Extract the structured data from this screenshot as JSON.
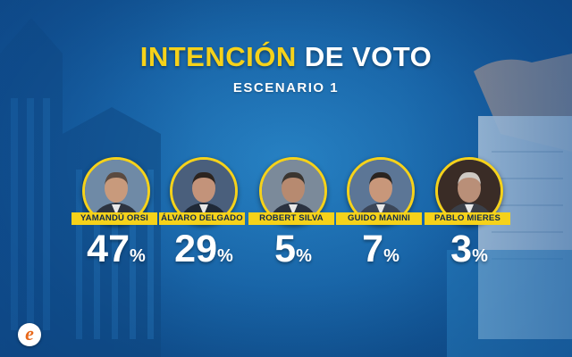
{
  "title": {
    "highlight": "INTENCIÓN",
    "rest": "DE VOTO"
  },
  "subtitle": "ESCENARIO 1",
  "colors": {
    "accent": "#f6d21a",
    "background": "#1a66a8",
    "text": "#ffffff"
  },
  "logo": {
    "letter": "e",
    "icon": "e-logo-icon"
  },
  "chart_data": {
    "type": "bar",
    "title": "INTENCIÓN DE VOTO",
    "subtitle": "ESCENARIO 1",
    "categories": [
      "YAMANDÚ ORSI",
      "ÁLVARO DELGADO",
      "ROBERT SILVA",
      "GUIDO MANINI",
      "PABLO MIERES"
    ],
    "values": [
      47,
      29,
      5,
      7,
      3
    ],
    "unit": "%",
    "labels": [
      "47",
      "29",
      "5",
      "7",
      "3"
    ]
  }
}
